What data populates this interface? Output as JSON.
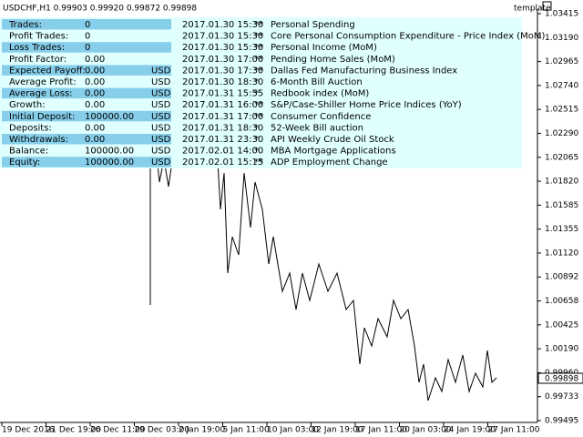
{
  "header": {
    "symbol": "USDCHF,H1 0.99903 0.99920 0.99872 0.99898",
    "template": "template"
  },
  "stats": [
    [
      "Trades:",
      "0",
      ""
    ],
    [
      "Profit Trades:",
      "0",
      ""
    ],
    [
      "Loss Trades:",
      "0",
      ""
    ],
    [
      "Profit Factor:",
      "0.00",
      ""
    ],
    [
      "Expected Payoff:",
      "0.00",
      "USD"
    ],
    [
      "Average Profit:",
      "0.00",
      "USD"
    ],
    [
      "Average Loss:",
      "0.00",
      "USD"
    ],
    [
      "Growth:",
      "0.00",
      "USD"
    ],
    [
      "Initial Deposit:",
      "100000.00",
      "USD"
    ],
    [
      "Deposits:",
      "0.00",
      "USD"
    ],
    [
      "Withdrawals:",
      "0.00",
      "USD"
    ],
    [
      "Balance:",
      "100000.00",
      "USD"
    ],
    [
      "Equity:",
      "100000.00",
      "USD"
    ]
  ],
  "news": [
    [
      "2017.01.30 15:30",
      "**",
      "Personal Spending"
    ],
    [
      "2017.01.30 15:30",
      "**",
      "Core Personal Consumption Expenditure - Price Index (MoM)"
    ],
    [
      "2017.01.30 15:30",
      "**",
      "Personal Income (MoM)"
    ],
    [
      "2017.01.30 17:00",
      "**",
      "Pending Home Sales (MoM)"
    ],
    [
      "2017.01.30 17:30",
      "**",
      "Dallas Fed Manufacturing Business Index"
    ],
    [
      "2017.01.30 18:30",
      "*",
      "6-Month Bill Auction"
    ],
    [
      "2017.01.31 15:55",
      "*",
      "Redbook index (MoM)"
    ],
    [
      "2017.01.31 16:00",
      "**",
      "S&P/Case-Shiller Home Price Indices (YoY)"
    ],
    [
      "2017.01.31 17:00",
      "**",
      "Consumer Confidence"
    ],
    [
      "2017.01.31 18:30",
      "*",
      "52-Week Bill auction"
    ],
    [
      "2017.01.31 23:30",
      "*",
      "API Weekly Crude Oil Stock"
    ],
    [
      "2017.02.01 14:00",
      "*",
      "MBA Mortgage Applications"
    ],
    [
      "2017.02.01 15:15",
      "**",
      "ADP Employment Change"
    ]
  ],
  "price_axis": [
    "1.03415",
    "1.03190",
    "1.02965",
    "1.02740",
    "1.02515",
    "1.02290",
    "1.02065",
    "1.01820",
    "1.01585",
    "1.01355",
    "1.01120",
    "1.00892",
    "1.00658",
    "1.00425",
    "1.00190",
    "0.99960",
    "0.99733",
    "0.99495"
  ],
  "current_price": "0.99898",
  "time_axis": [
    "19 Dec 2016",
    "21 Dec 19:00",
    "26 Dec 11:00",
    "29 Dec 03:00",
    "2 Jan 19:00",
    "5 Jan 11:00",
    "10 Jan 03:00",
    "12 Jan 19:00",
    "17 Jan 11:00",
    "20 Jan 03:00",
    "24 Jan 19:00",
    "27 Jan 11:00"
  ]
}
